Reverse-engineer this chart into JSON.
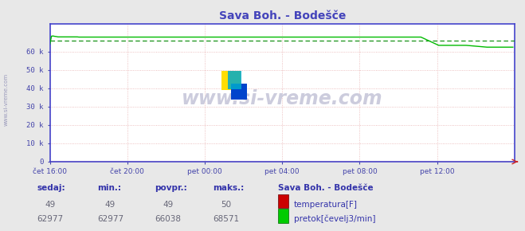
{
  "title": "Sava Boh. - Bodešče",
  "bg_color": "#e8e8e8",
  "plot_bg_color": "#ffffff",
  "grid_color": "#e8b0b0",
  "axis_color": "#4444cc",
  "tick_color": "#4444aa",
  "title_color": "#4444bb",
  "xlim": [
    0,
    288
  ],
  "ylim": [
    0,
    75000
  ],
  "yticks": [
    0,
    10000,
    20000,
    30000,
    40000,
    50000,
    60000
  ],
  "ytick_labels": [
    "0",
    "10 k",
    "20 k",
    "30 k",
    "40 k",
    "50 k",
    "60 k"
  ],
  "xtick_positions": [
    0,
    48,
    96,
    144,
    192,
    240
  ],
  "xtick_labels": [
    "čet 16:00",
    "čet 20:00",
    "pet 00:00",
    "pet 04:00",
    "pet 08:00",
    "pet 12:00"
  ],
  "temp_color": "#cc0000",
  "flow_color": "#00bb00",
  "flow_avg_color": "#008800",
  "watermark_text": "www.si-vreme.com",
  "watermark_color": "#ccccdd",
  "legend_title": "Sava Boh. - Bodešče",
  "legend_title_color": "#3333aa",
  "legend_color": "#3333aa",
  "footer_label_color": "#3333aa",
  "footer_value_color": "#666677",
  "sedaj_temp": 49,
  "sedaj_flow": 62977,
  "min_temp": 49,
  "min_flow": 62977,
  "povpr_temp": 49,
  "povpr_flow": 66038,
  "maks_temp": 50,
  "maks_flow": 68571,
  "n_points": 288,
  "flow_avg": 66038.0
}
